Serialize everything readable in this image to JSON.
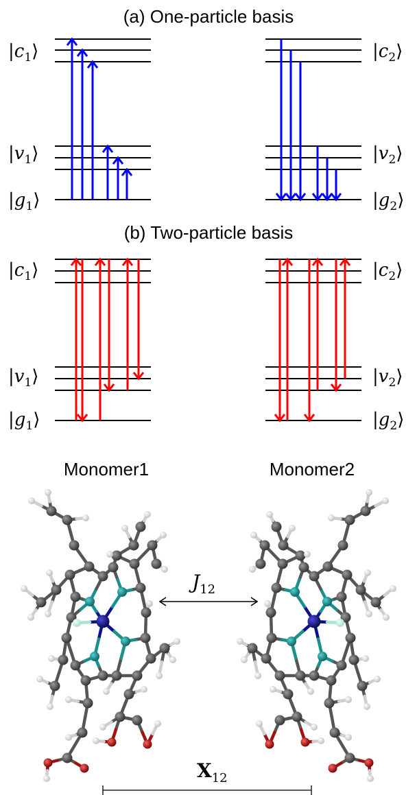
{
  "panel_a": {
    "title": "(a) One-particle basis",
    "left_labels": {
      "c": [
        "c",
        "1"
      ],
      "v": [
        "v",
        "1"
      ],
      "g": [
        "g",
        "1"
      ]
    },
    "right_labels": {
      "c": [
        "c",
        "2"
      ],
      "v": [
        "v",
        "2"
      ],
      "g": [
        "g",
        "2"
      ]
    }
  },
  "panel_b": {
    "title": "(b) Two-particle basis",
    "left_labels": {
      "c": [
        "c",
        "1"
      ],
      "v": [
        "v",
        "1"
      ],
      "g": [
        "g",
        "1"
      ]
    },
    "right_labels": {
      "c": [
        "c",
        "2"
      ],
      "v": [
        "v",
        "2"
      ],
      "g": [
        "g",
        "2"
      ]
    }
  },
  "monomers": {
    "left_name": "Monomer1",
    "right_name": "Monomer2",
    "coupling_symbol": "J",
    "coupling_sub": "12",
    "separation_symbol": "X",
    "separation_sub": "12"
  },
  "colors": {
    "one_particle_arrows": "#0000ff",
    "two_particle_arrows": "#ff0000",
    "levels": "#000000",
    "carbon": "#4a4a4a",
    "hydrogen": "#e8e8e8",
    "nitrogen": "#1a8f8f",
    "magnesium": "#0a0a80",
    "oxygen": "#b01010",
    "fluorine_like": "#bff0d8"
  }
}
